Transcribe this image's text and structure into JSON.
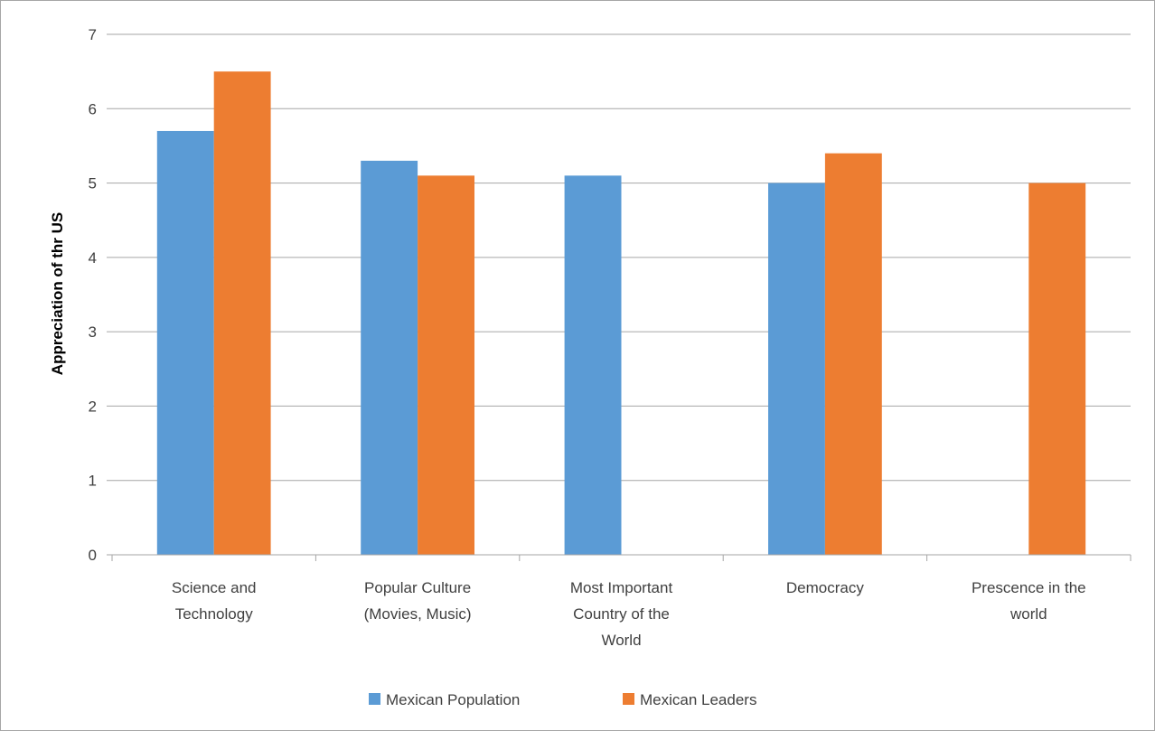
{
  "chart_data": {
    "type": "bar",
    "categories": [
      [
        "Science and",
        "Technology"
      ],
      [
        "Popular Culture",
        "(Movies, Music)"
      ],
      [
        "Most Important",
        "Country of the",
        "World"
      ],
      [
        "Democracy"
      ],
      [
        "Prescence in the",
        "world"
      ]
    ],
    "series": [
      {
        "name": "Mexican Population",
        "color": "#5b9bd5",
        "values": [
          5.7,
          5.3,
          5.1,
          5.0,
          null
        ]
      },
      {
        "name": "Mexican Leaders",
        "color": "#ed7d31",
        "values": [
          6.5,
          5.1,
          null,
          5.4,
          5.0
        ]
      }
    ],
    "xlabel": "",
    "ylabel": "Appreciation of thr US",
    "ylim": [
      0,
      7
    ],
    "yticks": [
      0,
      1,
      2,
      3,
      4,
      5,
      6,
      7
    ],
    "grid": true,
    "legend_position": "bottom"
  }
}
